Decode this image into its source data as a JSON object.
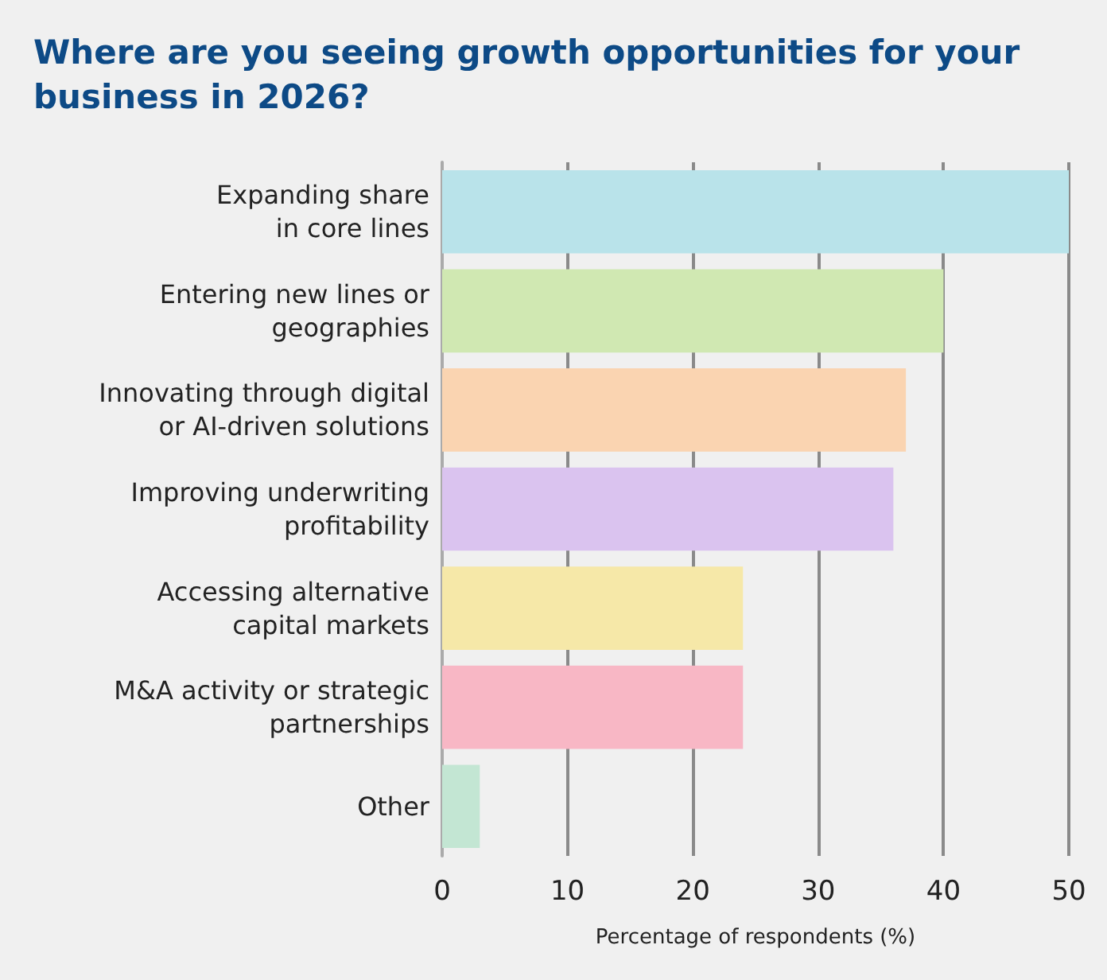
{
  "chart_data": {
    "type": "bar",
    "orientation": "horizontal",
    "title": "Where are you seeing growth opportunities for your\nbusiness in 2026?",
    "xlabel": "Percentage of respondents (%)",
    "categories": [
      "Expanding share\nin core lines",
      "Entering new lines or\ngeographies",
      "Innovating through digital\nor AI-driven solutions",
      "Improving underwriting\nprofitability",
      "Accessing alternative\ncapital markets",
      "M&A activity or strategic\npartnerships",
      "Other"
    ],
    "values": [
      50,
      40,
      37,
      36,
      24,
      24,
      3
    ],
    "colors": [
      "#b9e3ea",
      "#d0e8b2",
      "#fad4b1",
      "#dac3ef",
      "#f6e8a8",
      "#f8b7c5",
      "#c3e6d3"
    ],
    "xlim": [
      0,
      50
    ],
    "xticks": [
      0,
      10,
      20,
      30,
      40,
      50
    ],
    "grid": "x"
  }
}
